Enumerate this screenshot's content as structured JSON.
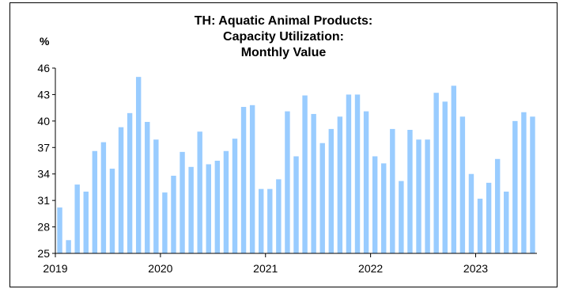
{
  "chart_data": {
    "type": "bar",
    "title": [
      "TH: Aquatic Animal Products:",
      "Capacity Utilization:",
      "Monthly Value"
    ],
    "ylabel": "%",
    "xlabel": "",
    "ylim": [
      25,
      46
    ],
    "yticks": [
      25,
      28,
      31,
      34,
      37,
      40,
      43,
      46
    ],
    "xtick_labels": [
      "2019",
      "2020",
      "2021",
      "2022",
      "2023"
    ],
    "bar_color": "#99ccff",
    "grid": false,
    "x": [
      "2019-01",
      "2019-02",
      "2019-03",
      "2019-04",
      "2019-05",
      "2019-06",
      "2019-07",
      "2019-08",
      "2019-09",
      "2019-10",
      "2019-11",
      "2019-12",
      "2020-01",
      "2020-02",
      "2020-03",
      "2020-04",
      "2020-05",
      "2020-06",
      "2020-07",
      "2020-08",
      "2020-09",
      "2020-10",
      "2020-11",
      "2020-12",
      "2021-01",
      "2021-02",
      "2021-03",
      "2021-04",
      "2021-05",
      "2021-06",
      "2021-07",
      "2021-08",
      "2021-09",
      "2021-10",
      "2021-11",
      "2021-12",
      "2022-01",
      "2022-02",
      "2022-03",
      "2022-04",
      "2022-05",
      "2022-06",
      "2022-07",
      "2022-08",
      "2022-09",
      "2022-10",
      "2022-11",
      "2022-12",
      "2023-01",
      "2023-02",
      "2023-03",
      "2023-04",
      "2023-05",
      "2023-06",
      "2023-07"
    ],
    "values": [
      30.2,
      26.5,
      32.8,
      32.0,
      36.6,
      37.6,
      34.6,
      39.3,
      40.9,
      45.0,
      39.9,
      37.9,
      31.9,
      33.8,
      36.5,
      34.8,
      38.8,
      35.1,
      35.5,
      36.6,
      38.0,
      41.6,
      41.8,
      32.3,
      32.3,
      33.4,
      41.1,
      36.0,
      42.9,
      40.8,
      37.5,
      39.1,
      40.5,
      43.0,
      43.0,
      41.1,
      36.0,
      35.2,
      39.1,
      33.2,
      39.0,
      37.9,
      37.9,
      43.2,
      42.2,
      44.0,
      40.5,
      34.0,
      31.2,
      33.0,
      35.7,
      32.0,
      40.0,
      41.0,
      40.5
    ]
  }
}
